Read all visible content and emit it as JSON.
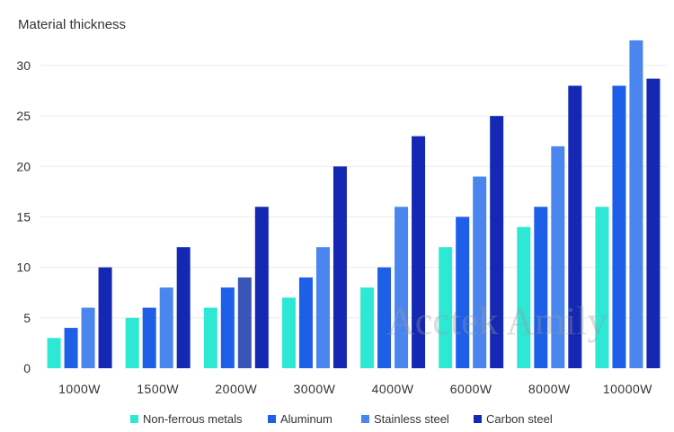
{
  "chart_data": {
    "type": "bar",
    "title": "Material thickness",
    "xlabel": "",
    "ylabel": "",
    "ylim": [
      0,
      33
    ],
    "yticks": [
      0,
      5,
      10,
      15,
      20,
      25,
      30
    ],
    "grid": true,
    "legend_position": "bottom",
    "categories": [
      "1000W",
      "1500W",
      "2000W",
      "3000W",
      "4000W",
      "6000W",
      "8000W",
      "10000W"
    ],
    "series": [
      {
        "name": "Non-ferrous metals",
        "color": "#2de8d4",
        "values": [
          3,
          5,
          6,
          7,
          8,
          12,
          14,
          16
        ]
      },
      {
        "name": "Aluminum",
        "color": "#1e5fe8",
        "values": [
          4,
          6,
          8,
          9,
          10,
          15,
          16,
          28
        ]
      },
      {
        "name": "Stainless steel",
        "color": "#4a86ee",
        "values": [
          6,
          8,
          9,
          12,
          16,
          19,
          22,
          32.5
        ]
      },
      {
        "name": "Carbon steel",
        "color": "#1428b4",
        "values": [
          10,
          12,
          16,
          20,
          23,
          25,
          28,
          28.7
        ]
      }
    ],
    "special_bar_colors": [
      {
        "category": "2000W",
        "series": "Stainless steel",
        "color": "#3a55b8"
      }
    ],
    "watermark": "Acctek Amily"
  }
}
